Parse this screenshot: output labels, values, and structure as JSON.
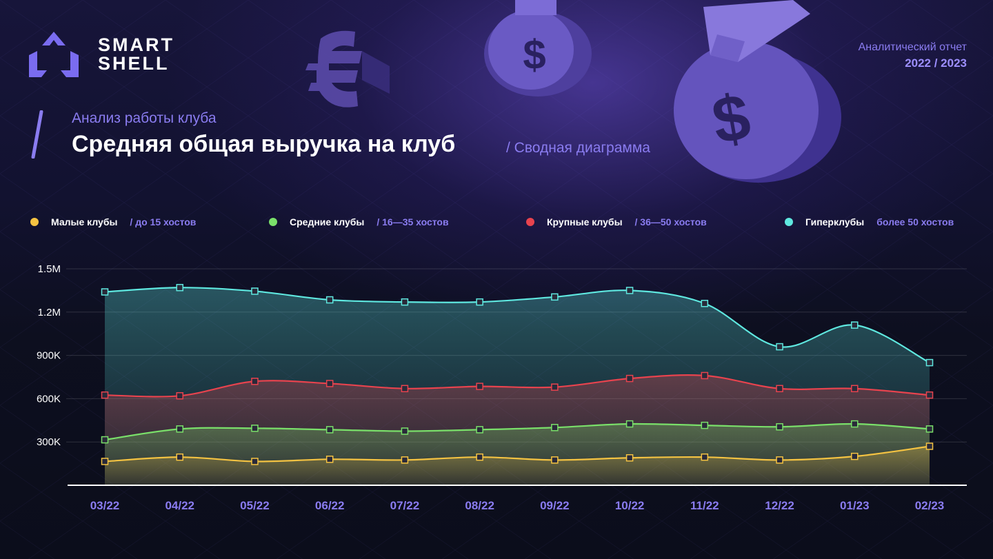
{
  "brand": {
    "line1": "SMART",
    "line2": "SHELL"
  },
  "report": {
    "label": "Аналитический отчет",
    "year": "2022 / 2023"
  },
  "header": {
    "subtitle": "Анализ работы клуба",
    "title": "Средняя общая выручка на клуб",
    "note": "/ Сводная диаграмма"
  },
  "legend": [
    {
      "name": "Малые клубы",
      "range": "/ до 15 хостов",
      "color": "#f5c342"
    },
    {
      "name": "Средние клубы",
      "range": "/ 16—35 хостов",
      "color": "#7ae06a"
    },
    {
      "name": "Крупные клубы",
      "range": "/ 36—50 хостов",
      "color": "#e8434e"
    },
    {
      "name": "Гиперклубы",
      "range": "более 50 хостов",
      "color": "#5fe8e0"
    }
  ],
  "chart_data": {
    "type": "area",
    "title": "Средняя общая выручка на клуб",
    "categories": [
      "03/22",
      "04/22",
      "05/22",
      "06/22",
      "07/22",
      "08/22",
      "09/22",
      "10/22",
      "11/22",
      "12/22",
      "01/23",
      "02/23"
    ],
    "ylim": [
      0,
      1500000
    ],
    "yticks": [
      300000,
      600000,
      900000,
      1200000,
      1500000
    ],
    "ytick_labels": [
      "300K",
      "600K",
      "900K",
      "1.2M",
      "1.5M"
    ],
    "grid": true,
    "legend_position": "top",
    "series": [
      {
        "name": "Гиперклубы",
        "color": "#5fe8e0",
        "values": [
          1340000,
          1370000,
          1345000,
          1285000,
          1270000,
          1270000,
          1305000,
          1350000,
          1260000,
          960000,
          1110000,
          850000
        ]
      },
      {
        "name": "Крупные клубы",
        "color": "#e8434e",
        "values": [
          625000,
          620000,
          720000,
          705000,
          670000,
          685000,
          680000,
          740000,
          760000,
          670000,
          670000,
          625000
        ]
      },
      {
        "name": "Средние клубы",
        "color": "#7ae06a",
        "values": [
          315000,
          390000,
          395000,
          385000,
          375000,
          385000,
          400000,
          425000,
          415000,
          405000,
          425000,
          390000
        ]
      },
      {
        "name": "Малые клубы",
        "color": "#f5c342",
        "values": [
          165000,
          195000,
          165000,
          180000,
          175000,
          195000,
          175000,
          190000,
          195000,
          175000,
          200000,
          270000
        ]
      }
    ]
  }
}
